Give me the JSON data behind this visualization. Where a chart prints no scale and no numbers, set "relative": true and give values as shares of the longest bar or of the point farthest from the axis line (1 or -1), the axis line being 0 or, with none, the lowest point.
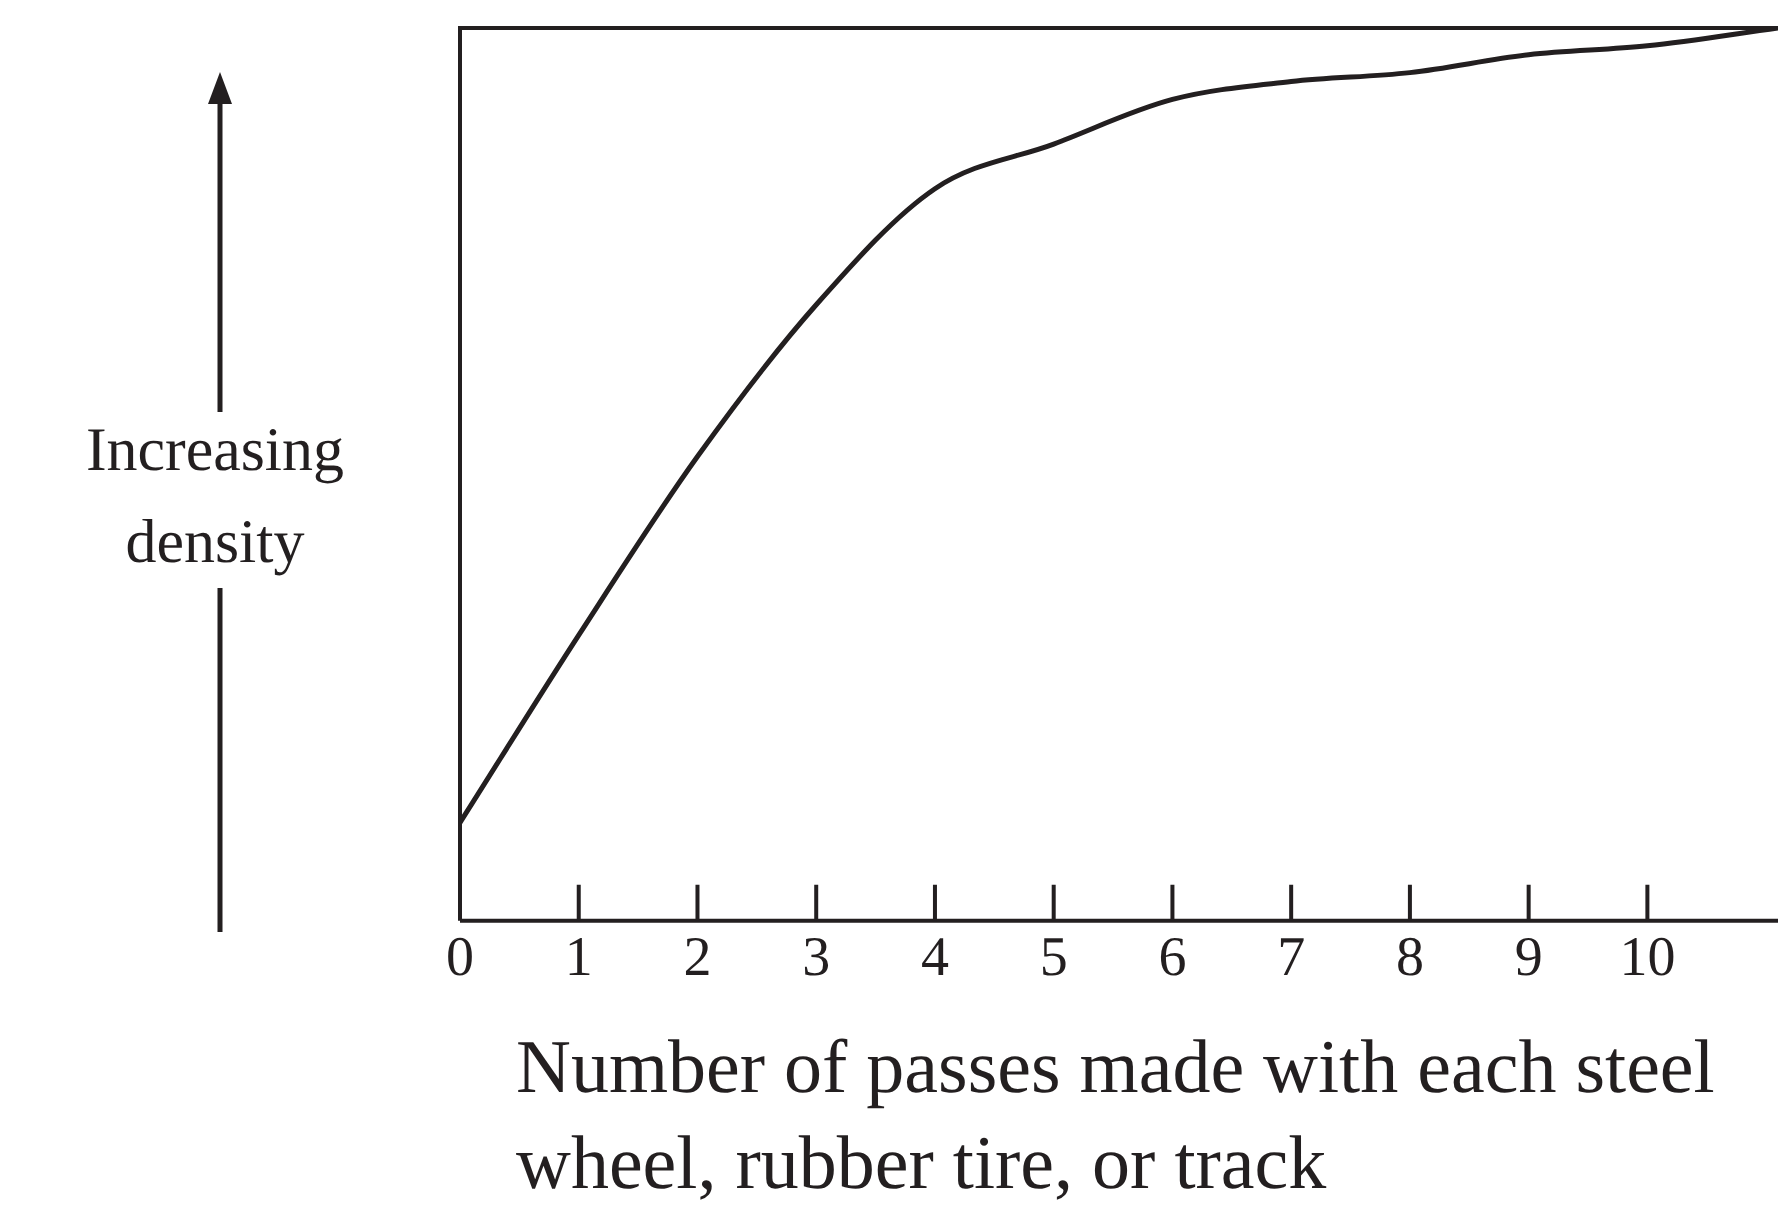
{
  "chart_data": {
    "type": "line",
    "relative": true,
    "xlabel": "Number of passes made with each steel wheel, rubber tire, or track",
    "ylabel": "Increasing density",
    "x": [
      0,
      1,
      2,
      3,
      4,
      5,
      6,
      7,
      8,
      9,
      10,
      11.1
    ],
    "series": [
      {
        "color": "#231f20",
        "values": [
          0.11,
          0.32,
          0.52,
          0.69,
          0.82,
          0.87,
          0.92,
          0.94,
          0.95,
          0.97,
          0.98,
          1.0
        ]
      }
    ],
    "xlim": [
      0,
      11.1
    ],
    "xticks": [
      0,
      1,
      2,
      3,
      4,
      5,
      6,
      7,
      8,
      9,
      10
    ],
    "grid": false,
    "legend": false,
    "marker": "none"
  }
}
